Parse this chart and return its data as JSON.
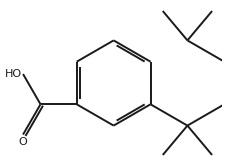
{
  "background_color": "#ffffff",
  "line_color": "#1a1a1a",
  "line_width": 1.4,
  "dbo": 0.018,
  "fig_width": 2.3,
  "fig_height": 1.66,
  "dpi": 100,
  "font_size": 8.0
}
